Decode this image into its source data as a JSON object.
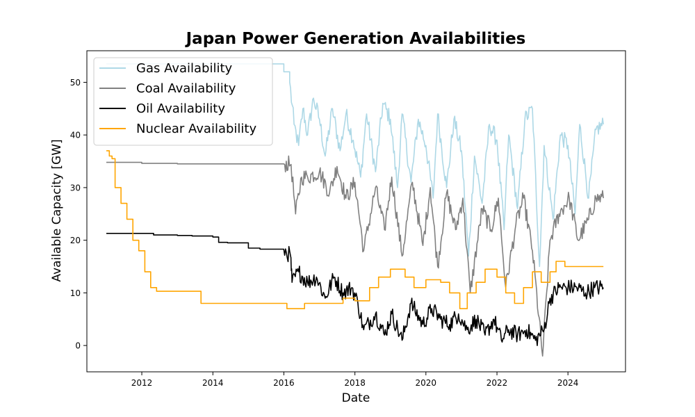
{
  "chart_data": {
    "type": "line",
    "title": "Japan Power Generation Availabilities",
    "xlabel": "Date",
    "ylabel": "Available Capacity [GW]",
    "xlim": [
      "2010-06-15",
      "2025-08-15"
    ],
    "ylim": [
      -5,
      56
    ],
    "x_ticks": [
      {
        "label": "2012",
        "date": "2012-01-01"
      },
      {
        "label": "2014",
        "date": "2014-01-01"
      },
      {
        "label": "2016",
        "date": "2016-01-01"
      },
      {
        "label": "2018",
        "date": "2018-01-01"
      },
      {
        "label": "2020",
        "date": "2020-01-01"
      },
      {
        "label": "2022",
        "date": "2022-01-01"
      },
      {
        "label": "2024",
        "date": "2024-01-01"
      }
    ],
    "y_ticks": [
      0,
      10,
      20,
      30,
      40,
      50
    ],
    "legend_position": "upper-left",
    "grid": false,
    "series": [
      {
        "name": "Gas Availability",
        "color": "#add8e6",
        "x": [
          "2011-01-01",
          "2011-06-01",
          "2012-01-01",
          "2013-01-01",
          "2014-01-01",
          "2015-01-01",
          "2015-06-01",
          "2016-01-01",
          "2016-03-01",
          "2016-04-15",
          "2016-06-01",
          "2016-07-15",
          "2016-09-01",
          "2016-11-01",
          "2017-01-01",
          "2017-03-01",
          "2017-05-15",
          "2017-08-01",
          "2017-10-01",
          "2017-12-15",
          "2018-03-01",
          "2018-05-01",
          "2018-08-01",
          "2018-10-15",
          "2019-01-01",
          "2019-03-15",
          "2019-05-01",
          "2019-08-01",
          "2019-10-15",
          "2020-01-01",
          "2020-03-15",
          "2020-05-01",
          "2020-08-01",
          "2020-10-15",
          "2021-01-01",
          "2021-03-15",
          "2021-05-15",
          "2021-08-01",
          "2021-10-15",
          "2022-01-01",
          "2022-03-15",
          "2022-05-01",
          "2022-08-01",
          "2022-10-15",
          "2023-01-01",
          "2023-03-15",
          "2023-05-01",
          "2023-08-01",
          "2023-10-15",
          "2024-01-01",
          "2024-03-15",
          "2024-05-01",
          "2024-08-01",
          "2024-10-15",
          "2024-12-31"
        ],
        "values": [
          53.5,
          53.5,
          53.5,
          53.5,
          53.5,
          53.5,
          53.5,
          52,
          50,
          42,
          38,
          45,
          40,
          47,
          43,
          36,
          45,
          37,
          44,
          39,
          32,
          44,
          33,
          46,
          43,
          30,
          44,
          31,
          43,
          38,
          28,
          44,
          30,
          43,
          37,
          17,
          36,
          27,
          42,
          39,
          22,
          40,
          26,
          43,
          45,
          15,
          38,
          24,
          40,
          38,
          25,
          42,
          28,
          41,
          42
        ]
      },
      {
        "name": "Coal Availability",
        "color": "#808080",
        "x": [
          "2011-01-01",
          "2012-01-01",
          "2013-01-01",
          "2014-01-01",
          "2015-01-01",
          "2016-01-01",
          "2016-03-15",
          "2016-05-01",
          "2016-07-01",
          "2016-09-01",
          "2017-01-01",
          "2017-04-15",
          "2017-07-01",
          "2017-10-01",
          "2018-01-01",
          "2018-04-01",
          "2018-08-01",
          "2018-11-01",
          "2019-01-15",
          "2019-05-01",
          "2019-08-15",
          "2019-12-01",
          "2020-02-15",
          "2020-05-01",
          "2020-08-01",
          "2020-11-01",
          "2021-01-15",
          "2021-04-01",
          "2021-08-01",
          "2021-11-01",
          "2022-01-15",
          "2022-04-01",
          "2022-07-15",
          "2022-10-01",
          "2023-01-01",
          "2023-04-15",
          "2023-07-01",
          "2023-10-01",
          "2024-01-15",
          "2024-04-15",
          "2024-08-01",
          "2024-10-15",
          "2024-12-31"
        ],
        "values": [
          34.8,
          34.6,
          34.5,
          34.5,
          34.5,
          34.5,
          34.4,
          25,
          32,
          32,
          33,
          29,
          34,
          28,
          31,
          18,
          30,
          22,
          32,
          17,
          31,
          19,
          30,
          15,
          29,
          22,
          28,
          10,
          26,
          22,
          28,
          11,
          23,
          28,
          18,
          -2,
          20,
          25,
          28,
          20,
          24,
          28,
          28
        ]
      },
      {
        "name": "Oil Availability",
        "color": "#000000",
        "x": [
          "2011-01-01",
          "2012-01-01",
          "2012-05-01",
          "2013-01-01",
          "2013-06-01",
          "2014-01-01",
          "2014-03-01",
          "2014-06-01",
          "2015-01-01",
          "2015-05-01",
          "2016-01-01",
          "2016-03-10",
          "2016-03-25",
          "2016-06-01",
          "2016-09-01",
          "2016-12-01",
          "2017-03-01",
          "2017-06-01",
          "2017-09-01",
          "2017-12-01",
          "2018-02-01",
          "2018-04-01",
          "2018-08-01",
          "2018-11-01",
          "2019-01-15",
          "2019-05-01",
          "2019-08-01",
          "2019-12-01",
          "2020-03-01",
          "2020-06-01",
          "2020-09-01",
          "2020-12-01",
          "2021-03-01",
          "2021-06-01",
          "2021-09-01",
          "2021-12-01",
          "2022-02-15",
          "2022-05-01",
          "2022-08-01",
          "2022-11-01",
          "2023-02-01",
          "2023-05-01",
          "2023-07-01",
          "2023-10-01",
          "2024-01-01",
          "2024-04-01",
          "2024-07-01",
          "2024-10-01",
          "2024-12-31"
        ],
        "values": [
          21.3,
          21.3,
          21,
          20.9,
          20.8,
          20.6,
          19.6,
          19.5,
          18.5,
          18.3,
          18.2,
          17,
          12,
          14,
          12,
          13,
          9,
          13,
          10,
          11,
          8,
          3,
          6,
          2,
          6,
          1,
          8,
          4,
          7,
          5,
          4,
          6,
          3,
          5,
          2,
          5,
          1,
          3,
          2,
          3,
          1,
          3,
          9,
          11,
          11,
          11,
          10,
          11,
          11
        ]
      },
      {
        "name": "Nuclear Availability",
        "color": "#ffa500",
        "x": [
          "2011-01-01",
          "2011-02-01",
          "2011-03-01",
          "2011-04-01",
          "2011-06-01",
          "2011-08-01",
          "2011-10-01",
          "2011-12-01",
          "2012-02-01",
          "2012-04-01",
          "2012-06-01",
          "2013-01-01",
          "2013-06-01",
          "2013-09-01",
          "2014-01-01",
          "2015-01-01",
          "2015-08-01",
          "2016-01-01",
          "2016-02-01",
          "2016-08-01",
          "2017-06-01",
          "2017-09-01",
          "2018-01-01",
          "2018-06-01",
          "2018-09-01",
          "2019-01-01",
          "2019-06-01",
          "2019-09-01",
          "2020-01-01",
          "2020-06-01",
          "2020-09-01",
          "2020-12-15",
          "2021-03-01",
          "2021-06-01",
          "2021-09-01",
          "2022-01-01",
          "2022-04-01",
          "2022-07-01",
          "2022-10-01",
          "2023-01-01",
          "2023-04-01",
          "2023-07-01",
          "2023-09-01",
          "2023-12-01",
          "2024-03-01",
          "2024-06-01",
          "2024-09-01",
          "2024-12-31"
        ],
        "values": [
          37,
          36,
          35.5,
          30,
          27,
          24,
          20,
          18,
          14,
          11,
          10.3,
          10.3,
          10.3,
          8,
          8,
          8,
          8,
          8,
          7,
          8,
          8,
          9,
          8.5,
          11,
          13,
          14.5,
          13,
          11,
          12.5,
          12,
          10,
          7,
          10,
          12,
          14.5,
          13,
          10,
          8,
          11,
          14,
          12,
          14,
          16,
          15,
          15,
          15,
          15,
          15
        ]
      }
    ]
  }
}
